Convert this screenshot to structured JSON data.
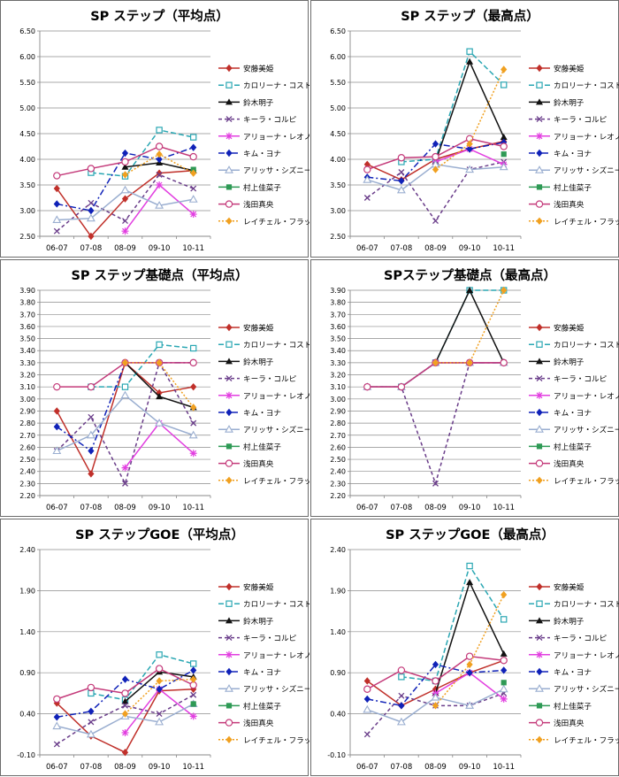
{
  "legend_series": [
    {
      "name": "安藤美姫",
      "color": "#c0302a",
      "marker": "diamond",
      "dash": ""
    },
    {
      "name": "カロリーナ・コストナー",
      "color": "#2aa7b3",
      "marker": "square-open",
      "dash": "6,3"
    },
    {
      "name": "鈴木明子",
      "color": "#111111",
      "marker": "triangle",
      "dash": ""
    },
    {
      "name": "キーラ・コルピ",
      "color": "#6a3d8a",
      "marker": "x",
      "dash": "4,3"
    },
    {
      "name": "アリョーナ・レオノワ",
      "color": "#e23fe0",
      "marker": "star",
      "dash": ""
    },
    {
      "name": "キム・ヨナ",
      "color": "#1022b8",
      "marker": "diamond",
      "dash": "7,3,2,3"
    },
    {
      "name": "アリッサ・シズニー",
      "color": "#9aaed0",
      "marker": "triangle-open",
      "dash": ""
    },
    {
      "name": "村上佳菜子",
      "color": "#2e9a55",
      "marker": "square",
      "dash": ""
    },
    {
      "name": "浅田真央",
      "color": "#c43a7a",
      "marker": "circle-open",
      "dash": ""
    },
    {
      "name": "レイチェル・フラット",
      "color": "#f0a020",
      "marker": "diamond",
      "dash": "2,2"
    }
  ],
  "chart_data": [
    {
      "type": "line",
      "title": "SP ステップ（平均点）",
      "categories": [
        "06-07",
        "07-08",
        "08-09",
        "09-10",
        "10-11"
      ],
      "ylim": [
        2.5,
        6.5
      ],
      "ystep": 0.5,
      "ydecimals": 2,
      "series": [
        {
          "name": "安藤美姫",
          "values": [
            3.43,
            2.5,
            3.23,
            3.73,
            3.78
          ]
        },
        {
          "name": "カロリーナ・コストナー",
          "values": [
            null,
            3.74,
            3.67,
            4.57,
            4.43
          ]
        },
        {
          "name": "鈴木明子",
          "values": [
            null,
            null,
            3.85,
            3.93,
            3.78
          ]
        },
        {
          "name": "キーラ・コルピ",
          "values": [
            2.6,
            3.15,
            2.8,
            3.7,
            3.43
          ]
        },
        {
          "name": "アリョーナ・レオノワ",
          "values": [
            null,
            null,
            2.6,
            3.5,
            2.93
          ]
        },
        {
          "name": "キム・ヨナ",
          "values": [
            3.13,
            3.0,
            4.12,
            4.0,
            4.23
          ]
        },
        {
          "name": "アリッサ・シズニー",
          "values": [
            2.82,
            2.85,
            3.4,
            3.1,
            3.22
          ]
        },
        {
          "name": "村上佳菜子",
          "values": [
            null,
            null,
            null,
            null,
            3.8
          ]
        },
        {
          "name": "浅田真央",
          "values": [
            3.68,
            3.82,
            3.95,
            4.25,
            4.05
          ]
        },
        {
          "name": "レイチェル・フラット",
          "values": [
            null,
            null,
            3.7,
            4.1,
            3.73
          ]
        }
      ]
    },
    {
      "type": "line",
      "title": "SP ステップ（最高点）",
      "categories": [
        "06-07",
        "07-08",
        "08-09",
        "09-10",
        "10-11"
      ],
      "ylim": [
        2.5,
        6.5
      ],
      "ystep": 0.5,
      "ydecimals": 2,
      "series": [
        {
          "name": "安藤美姫",
          "values": [
            3.9,
            3.6,
            4.0,
            4.2,
            4.35
          ]
        },
        {
          "name": "カロリーナ・コストナー",
          "values": [
            null,
            3.95,
            4.0,
            6.1,
            5.45
          ]
        },
        {
          "name": "鈴木明子",
          "values": [
            null,
            null,
            3.95,
            5.9,
            4.43
          ]
        },
        {
          "name": "キーラ・コルピ",
          "values": [
            3.25,
            3.75,
            2.8,
            3.8,
            3.95
          ]
        },
        {
          "name": "アリョーナ・レオノワ",
          "values": [
            null,
            null,
            3.95,
            4.2,
            3.9
          ]
        },
        {
          "name": "キム・ヨナ",
          "values": [
            3.65,
            3.58,
            4.3,
            4.2,
            4.33
          ]
        },
        {
          "name": "アリッサ・シズニー",
          "values": [
            3.6,
            3.4,
            3.9,
            3.8,
            3.85
          ]
        },
        {
          "name": "村上佳菜子",
          "values": [
            null,
            null,
            null,
            null,
            4.1
          ]
        },
        {
          "name": "浅田真央",
          "values": [
            3.8,
            4.03,
            4.05,
            4.4,
            4.25
          ]
        },
        {
          "name": "レイチェル・フラット",
          "values": [
            null,
            null,
            3.8,
            4.3,
            5.75
          ]
        }
      ]
    },
    {
      "type": "line",
      "title": "SP ステップ基礎点（平均点）",
      "categories": [
        "06-07",
        "07-08",
        "08-09",
        "09-10",
        "10-11"
      ],
      "ylim": [
        2.2,
        3.9
      ],
      "ystep": 0.1,
      "ydecimals": 2,
      "series": [
        {
          "name": "安藤美姫",
          "values": [
            2.9,
            2.38,
            3.3,
            3.05,
            3.1
          ]
        },
        {
          "name": "カロリーナ・コストナー",
          "values": [
            null,
            3.1,
            3.1,
            3.45,
            3.42
          ]
        },
        {
          "name": "鈴木明子",
          "values": [
            null,
            null,
            3.3,
            3.02,
            2.93
          ]
        },
        {
          "name": "キーラ・コルピ",
          "values": [
            2.57,
            2.85,
            2.3,
            3.3,
            2.8
          ]
        },
        {
          "name": "アリョーナ・レオノワ",
          "values": [
            null,
            null,
            2.43,
            2.8,
            2.55
          ]
        },
        {
          "name": "キム・ヨナ",
          "values": [
            2.77,
            2.57,
            3.3,
            3.3,
            3.3
          ]
        },
        {
          "name": "アリッサ・シズニー",
          "values": [
            2.57,
            2.7,
            3.03,
            2.8,
            2.7
          ]
        },
        {
          "name": "村上佳菜子",
          "values": [
            null,
            null,
            null,
            null,
            3.3
          ]
        },
        {
          "name": "浅田真央",
          "values": [
            3.1,
            3.1,
            3.3,
            3.3,
            3.3
          ]
        },
        {
          "name": "レイチェル・フラット",
          "values": [
            null,
            null,
            3.3,
            3.3,
            2.93
          ]
        }
      ]
    },
    {
      "type": "line",
      "title": "SPステップ基礎点（最高点）",
      "categories": [
        "06-07",
        "07-08",
        "08-09",
        "09-10",
        "10-11"
      ],
      "ylim": [
        2.2,
        3.9
      ],
      "ystep": 0.1,
      "ydecimals": 2,
      "series": [
        {
          "name": "安藤美姫",
          "values": [
            3.1,
            3.1,
            3.3,
            3.3,
            3.3
          ]
        },
        {
          "name": "カロリーナ・コストナー",
          "values": [
            null,
            3.1,
            3.3,
            3.9,
            3.9
          ]
        },
        {
          "name": "鈴木明子",
          "values": [
            null,
            null,
            3.3,
            3.9,
            3.3
          ]
        },
        {
          "name": "キーラ・コルピ",
          "values": [
            3.1,
            3.1,
            2.3,
            3.3,
            3.3
          ]
        },
        {
          "name": "アリョーナ・レオノワ",
          "values": [
            null,
            null,
            3.3,
            3.3,
            3.3
          ]
        },
        {
          "name": "キム・ヨナ",
          "values": [
            3.1,
            3.1,
            3.3,
            3.3,
            3.3
          ]
        },
        {
          "name": "アリッサ・シズニー",
          "values": [
            3.1,
            3.1,
            3.3,
            3.3,
            3.3
          ]
        },
        {
          "name": "村上佳菜子",
          "values": [
            null,
            null,
            null,
            null,
            3.3
          ]
        },
        {
          "name": "浅田真央",
          "values": [
            3.1,
            3.1,
            3.3,
            3.3,
            3.3
          ]
        },
        {
          "name": "レイチェル・フラット",
          "values": [
            null,
            null,
            3.3,
            3.3,
            3.9
          ]
        }
      ]
    },
    {
      "type": "line",
      "title": "SP ステップGOE（平均点）",
      "categories": [
        "06-07",
        "07-08",
        "08-09",
        "09-10",
        "10-11"
      ],
      "ylim": [
        -0.1,
        2.4
      ],
      "ystep": 0.5,
      "ydecimals": 2,
      "series": [
        {
          "name": "安藤美姫",
          "values": [
            0.53,
            0.13,
            -0.07,
            0.68,
            0.7
          ]
        },
        {
          "name": "カロリーナ・コストナー",
          "values": [
            null,
            0.65,
            0.57,
            1.12,
            1.01
          ]
        },
        {
          "name": "鈴木明子",
          "values": [
            null,
            null,
            0.55,
            0.91,
            0.85
          ]
        },
        {
          "name": "キーラ・コルピ",
          "values": [
            0.03,
            0.3,
            0.5,
            0.4,
            0.63
          ]
        },
        {
          "name": "アリョーナ・レオノワ",
          "values": [
            null,
            null,
            0.17,
            0.7,
            0.37
          ]
        },
        {
          "name": "キム・ヨナ",
          "values": [
            0.36,
            0.43,
            0.82,
            0.7,
            0.93
          ]
        },
        {
          "name": "アリッサ・シズニー",
          "values": [
            0.25,
            0.15,
            0.37,
            0.3,
            0.52
          ]
        },
        {
          "name": "村上佳菜子",
          "values": [
            null,
            null,
            null,
            null,
            0.52
          ]
        },
        {
          "name": "浅田真央",
          "values": [
            0.58,
            0.72,
            0.65,
            0.95,
            0.75
          ]
        },
        {
          "name": "レイチェル・フラット",
          "values": [
            null,
            null,
            0.4,
            0.8,
            0.82
          ]
        }
      ]
    },
    {
      "type": "line",
      "title": "SP ステップGOE（最高点）",
      "categories": [
        "06-07",
        "07-08",
        "08-09",
        "09-10",
        "10-11"
      ],
      "ylim": [
        -0.1,
        2.4
      ],
      "ystep": 0.5,
      "ydecimals": 2,
      "series": [
        {
          "name": "安藤美姫",
          "values": [
            0.8,
            0.5,
            0.7,
            0.9,
            1.05
          ]
        },
        {
          "name": "カロリーナ・コストナー",
          "values": [
            null,
            0.85,
            0.8,
            2.2,
            1.55
          ]
        },
        {
          "name": "鈴木明子",
          "values": [
            null,
            null,
            0.65,
            2.0,
            1.13
          ]
        },
        {
          "name": "キーラ・コルピ",
          "values": [
            0.15,
            0.62,
            0.5,
            0.5,
            0.65
          ]
        },
        {
          "name": "アリョーナ・レオノワ",
          "values": [
            null,
            null,
            0.65,
            0.9,
            0.58
          ]
        },
        {
          "name": "キム・ヨナ",
          "values": [
            0.58,
            0.5,
            1.0,
            0.9,
            0.93
          ]
        },
        {
          "name": "アリッサ・シズニー",
          "values": [
            0.45,
            0.3,
            0.6,
            0.5,
            0.7
          ]
        },
        {
          "name": "村上佳菜子",
          "values": [
            null,
            null,
            null,
            null,
            0.78
          ]
        },
        {
          "name": "浅田真央",
          "values": [
            0.7,
            0.93,
            0.8,
            1.1,
            1.05
          ]
        },
        {
          "name": "レイチェル・フラット",
          "values": [
            null,
            null,
            0.5,
            1.0,
            1.85
          ]
        }
      ]
    }
  ]
}
